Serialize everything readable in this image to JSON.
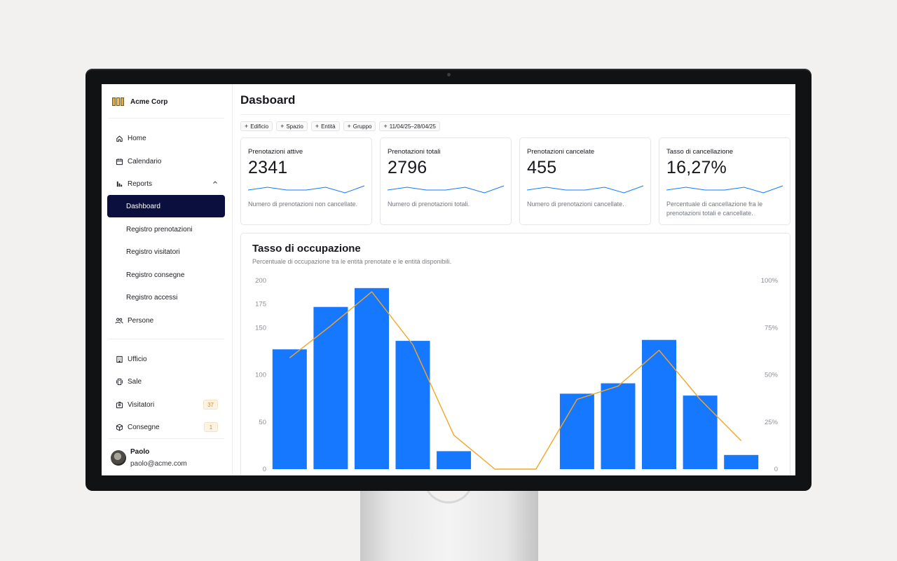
{
  "brand": {
    "name": "Acme Corp"
  },
  "sidebar": {
    "nav": [
      {
        "label": "Home",
        "icon": "home-icon"
      },
      {
        "label": "Calendario",
        "icon": "calendar-icon"
      },
      {
        "label": "Reports",
        "icon": "bar-chart-icon"
      }
    ],
    "reports_sub": [
      {
        "label": "Dashboard",
        "active": true
      },
      {
        "label": "Registro prenotazioni"
      },
      {
        "label": "Registro visitatori"
      },
      {
        "label": "Registro consegne"
      },
      {
        "label": "Registro accessi"
      }
    ],
    "people": {
      "label": "Persone",
      "icon": "people-icon"
    },
    "resources": [
      {
        "label": "Ufficio",
        "icon": "building-icon"
      },
      {
        "label": "Sale",
        "icon": "room-icon"
      },
      {
        "label": "Visitatori",
        "icon": "visitor-icon",
        "badge": "37"
      },
      {
        "label": "Consegne",
        "icon": "package-icon",
        "badge": "1"
      }
    ],
    "user": {
      "name": "Paolo",
      "email": "paolo@acme.com"
    }
  },
  "main": {
    "title": "Dasboard",
    "filters": [
      "Edificio",
      "Spazio",
      "Entità",
      "Gruppo",
      "11/04/25–28/04/25"
    ],
    "kpis": [
      {
        "label": "Prenotazioni attive",
        "value": "2341",
        "desc": "Numero di prenotazioni non cancellate."
      },
      {
        "label": "Prenotazioni totali",
        "value": "2796",
        "desc": "Numero di prenotazioni totali."
      },
      {
        "label": "Prenotazioni cancelate",
        "value": "455",
        "desc": "Numero di prenotazioni cancellate."
      },
      {
        "label": "Tasso di cancellazione",
        "value": "16,27%",
        "desc": "Percentuale di cancellazione fra le prenotazioni totali e cancellate."
      }
    ],
    "sparkline": [
      10,
      6,
      10,
      10,
      6,
      14,
      4
    ]
  },
  "colors": {
    "accent": "#1677ff",
    "line": "#f5a623",
    "active_nav": "#0b0f3d",
    "badge": "#d98a1f"
  },
  "chart_data": {
    "type": "bar",
    "title": "Tasso di occupazione",
    "subtitle": "Percentuale di occupazione tra le entità prenotate e le entità disponibili.",
    "categories": [
      "",
      "",
      "",
      "",
      "",
      "",
      "",
      "",
      "",
      "",
      "",
      ""
    ],
    "series": [
      {
        "type": "bar",
        "axis": "left",
        "values": [
          127,
          172,
          192,
          136,
          19,
          0,
          0,
          80,
          91,
          137,
          78,
          15
        ]
      },
      {
        "type": "line",
        "axis": "right",
        "values": [
          59,
          76,
          94,
          66,
          18,
          0,
          0,
          37,
          44,
          63,
          37,
          15
        ]
      }
    ],
    "y_left": {
      "min": 0,
      "max": 200,
      "ticks": [
        "0",
        "50",
        "100",
        "150",
        "175",
        "200"
      ],
      "tick_values": [
        0,
        50,
        100,
        150,
        175,
        200
      ]
    },
    "y_right": {
      "min": 0,
      "max": 100,
      "ticks": [
        "0",
        "25%",
        "50%",
        "75%",
        "100%"
      ],
      "tick_values": [
        0,
        25,
        50,
        75,
        100
      ]
    }
  }
}
